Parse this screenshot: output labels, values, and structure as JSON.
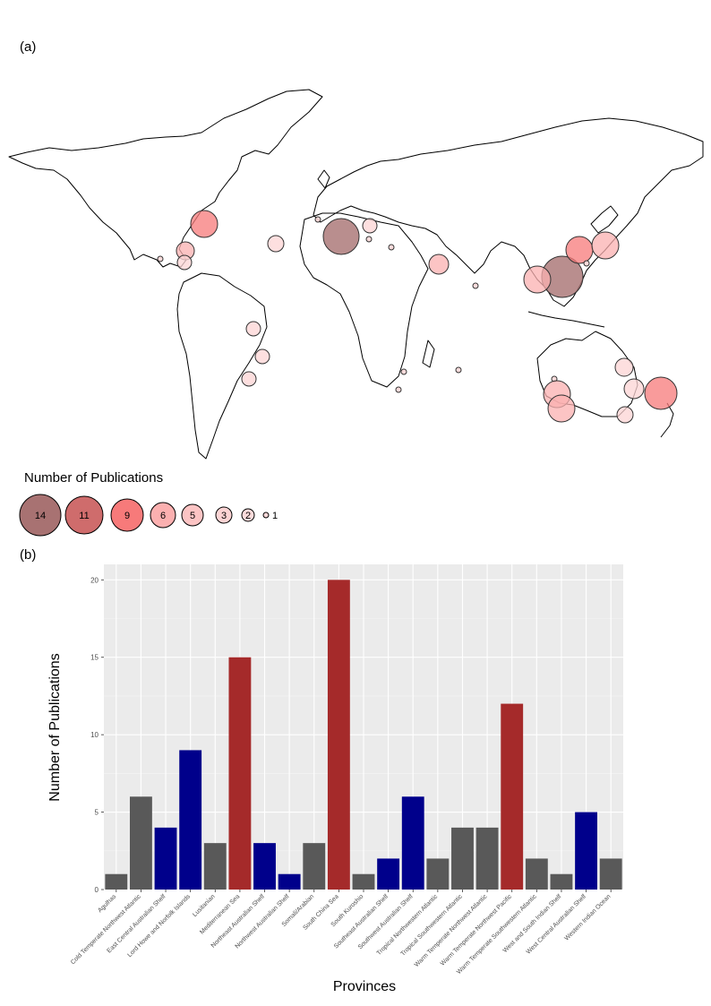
{
  "panels": {
    "a_label": "(a)",
    "b_label": "(b)"
  },
  "map": {
    "legend_title": "Number of Publications",
    "legend_sizes": [
      14,
      11,
      9,
      6,
      5,
      3,
      2,
      1
    ],
    "legend_colors": [
      "#a87272",
      "#cf6c6c",
      "#f77a7a",
      "#fbb0b0",
      "#fcc4c4",
      "#fcd4d4",
      "#fcdcdc",
      "#fad8d8"
    ],
    "land_stroke": "#000000",
    "circle_stroke": "#333333"
  },
  "chart_data": {
    "type": "bar",
    "title": "",
    "xlabel": "Provinces",
    "ylabel": "Number of Publications",
    "ylim": [
      0,
      21
    ],
    "yticks": [
      0,
      5,
      10,
      15,
      20
    ],
    "grid": true,
    "categories": [
      "Agulhas",
      "Cold Temperate Northwest Atlantic",
      "East Central Australian Shelf",
      "Lord Howe and Norfolk Islands",
      "Lusitanian",
      "Mediterranean Sea",
      "Northeast Australian Shelf",
      "Northwest Australian Shelf",
      "Somali/Arabian",
      "South China Sea",
      "South Kuroshio",
      "Southeast Australian Shelf",
      "Southwest Australian Shelf",
      "Tropical Northwestern Atlantic",
      "Tropical Southwestern Atlantic",
      "Warm Temperate Northwest Atlantic",
      "Warm Temperate Northwest Pacific",
      "Warm Temperate Southwestern Atlantic",
      "West and South Indian Shelf",
      "West Central Australian Shelf",
      "Western Indian Ocean"
    ],
    "values": [
      1,
      6,
      4,
      9,
      3,
      15,
      3,
      1,
      3,
      20,
      1,
      2,
      6,
      2,
      4,
      4,
      12,
      2,
      1,
      5,
      2
    ],
    "bar_groups": [
      "grey",
      "grey",
      "blue",
      "blue",
      "grey",
      "red",
      "blue",
      "blue",
      "grey",
      "red",
      "grey",
      "blue",
      "blue",
      "grey",
      "grey",
      "grey",
      "red",
      "grey",
      "grey",
      "blue",
      "grey"
    ],
    "colors": {
      "grey": "#595959",
      "blue": "#00008b",
      "red": "#a52a2a",
      "panel_bg": "#ebebeb",
      "grid": "#ffffff"
    }
  }
}
